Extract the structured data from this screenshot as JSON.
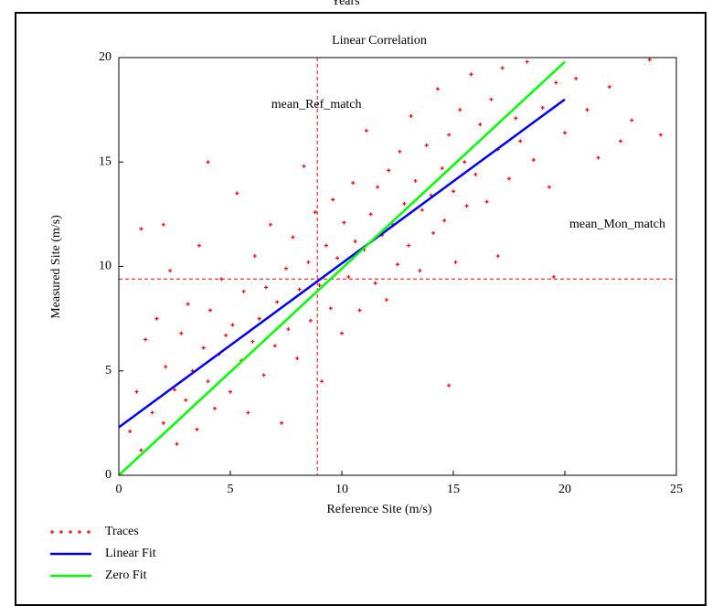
{
  "chart_data": {
    "type": "scatter",
    "top_label": "Years",
    "title": "Linear Correlation",
    "x_label": "Reference Site (m/s)",
    "y_label": "Measured Site (m/s)",
    "xlim": [
      0,
      25
    ],
    "xticks": [
      0,
      5,
      10,
      15,
      20,
      25
    ],
    "ylim": [
      0,
      20
    ],
    "yticks": [
      0,
      5,
      10,
      15,
      20
    ],
    "markers": [
      {
        "label": "mean_Ref_match",
        "axis": "x",
        "value": 8.9,
        "color": "#ff0000"
      },
      {
        "label": "mean_Mon_match",
        "axis": "y",
        "value": 9.4,
        "color": "#ff0000"
      }
    ],
    "series": [
      {
        "name": "Traces",
        "color": "#ff0000",
        "style": "points",
        "x": [
          0.5,
          0.8,
          1.0,
          1.2,
          1.5,
          1.7,
          2.0,
          2.1,
          2.3,
          2.5,
          2.6,
          2.8,
          3.0,
          3.1,
          3.3,
          3.5,
          3.6,
          3.8,
          4.0,
          4.1,
          4.3,
          4.5,
          4.6,
          4.8,
          5.0,
          5.1,
          5.3,
          5.5,
          5.6,
          5.8,
          6.0,
          6.1,
          6.3,
          6.5,
          6.6,
          6.8,
          7.0,
          7.1,
          7.3,
          7.5,
          7.6,
          7.8,
          8.0,
          8.1,
          8.3,
          8.5,
          8.6,
          8.8,
          9.0,
          9.1,
          9.3,
          9.5,
          9.6,
          9.8,
          10.0,
          10.1,
          10.3,
          10.5,
          10.6,
          10.8,
          11.0,
          11.1,
          11.3,
          11.5,
          11.6,
          11.8,
          12.0,
          12.1,
          12.3,
          12.5,
          12.6,
          12.8,
          13.0,
          13.1,
          13.3,
          13.5,
          13.6,
          13.8,
          14.0,
          14.1,
          14.3,
          14.5,
          14.6,
          14.8,
          15.0,
          15.1,
          15.3,
          15.5,
          15.6,
          15.8,
          16.0,
          16.2,
          16.5,
          16.7,
          17.0,
          17.2,
          17.5,
          17.8,
          18.0,
          18.3,
          18.6,
          19.0,
          19.3,
          19.6,
          20.0,
          20.5,
          21.0,
          21.5,
          22.0,
          22.5,
          23.0,
          23.8,
          24.3,
          19.5,
          17.0,
          2.0,
          1.0,
          4.0,
          14.8
        ],
        "values": [
          2.1,
          4.0,
          1.2,
          6.5,
          3.0,
          7.5,
          2.5,
          5.2,
          9.8,
          4.1,
          1.5,
          6.8,
          3.6,
          8.2,
          5.0,
          2.2,
          11.0,
          6.1,
          4.5,
          7.9,
          3.2,
          5.8,
          9.4,
          6.7,
          4.0,
          7.2,
          13.5,
          5.5,
          8.8,
          3.0,
          6.4,
          10.5,
          7.5,
          4.8,
          9.0,
          12.0,
          6.2,
          8.3,
          2.5,
          9.9,
          7.0,
          11.4,
          5.6,
          8.9,
          14.8,
          10.2,
          7.4,
          12.6,
          9.1,
          4.5,
          11.0,
          8.0,
          13.2,
          10.4,
          6.8,
          12.1,
          9.5,
          14.0,
          11.2,
          7.9,
          10.8,
          16.5,
          12.5,
          9.2,
          13.8,
          11.5,
          8.4,
          14.6,
          12.0,
          10.1,
          15.5,
          13.0,
          11.0,
          17.2,
          14.1,
          9.8,
          12.7,
          15.8,
          13.4,
          11.6,
          18.5,
          14.7,
          12.2,
          16.3,
          13.6,
          10.2,
          17.5,
          15.0,
          12.9,
          19.2,
          14.4,
          16.8,
          13.1,
          18.0,
          15.6,
          19.5,
          14.2,
          17.1,
          16.0,
          19.8,
          15.1,
          17.6,
          13.8,
          18.8,
          16.4,
          19.0,
          17.5,
          15.2,
          18.6,
          16.0,
          17.0,
          19.9,
          16.3,
          9.5,
          10.5,
          12.0,
          11.8,
          15.0,
          4.3
        ]
      },
      {
        "name": "Linear Fit",
        "color": "#0000ff",
        "style": "line",
        "x": [
          0,
          20
        ],
        "values": [
          2.3,
          18.0
        ]
      },
      {
        "name": "Zero Fit",
        "color": "#00ff00",
        "style": "line",
        "x": [
          0,
          20
        ],
        "values": [
          0,
          19.8
        ]
      }
    ]
  }
}
